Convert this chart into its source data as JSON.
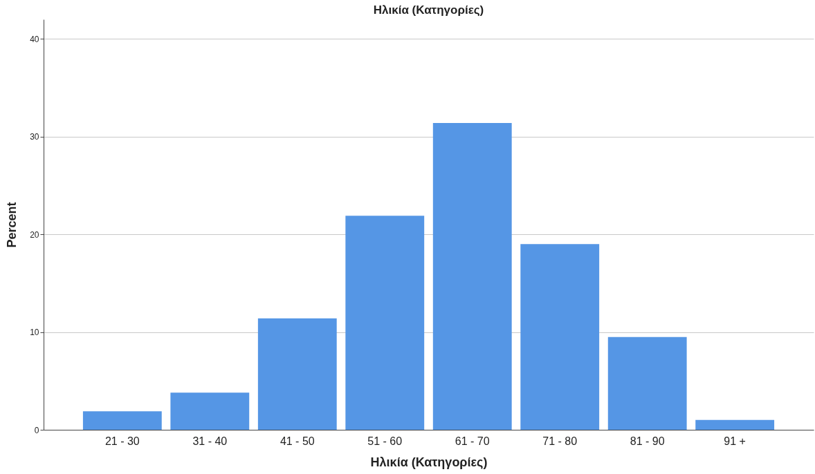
{
  "chart_data": {
    "type": "bar",
    "title": "Ηλικία (Κατηγορίες)",
    "xlabel": "Ηλικία (Κατηγορίες)",
    "ylabel": "Percent",
    "categories": [
      "21 - 30",
      "31 - 40",
      "41 - 50",
      "51 - 60",
      "61 - 70",
      "71 - 80",
      "81 - 90",
      "91 +"
    ],
    "values": [
      1.9,
      3.8,
      11.4,
      21.9,
      31.4,
      19.0,
      9.5,
      1.0
    ],
    "color": "#5596e5",
    "ylim": [
      0,
      42
    ],
    "yticks": [
      0,
      10,
      20,
      30,
      40
    ],
    "grid": "y"
  }
}
